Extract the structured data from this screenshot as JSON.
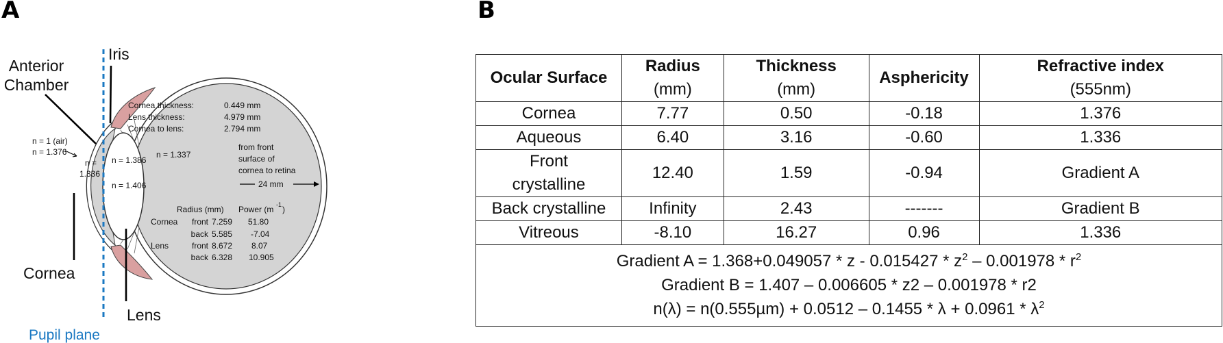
{
  "panels": {
    "a": "A",
    "b": "B"
  },
  "diagram": {
    "labels": {
      "anterior_chamber_1": "Anterior",
      "anterior_chamber_2": "Chamber",
      "iris": "Iris",
      "cornea": "Cornea",
      "lens": "Lens",
      "pupil_plane": "Pupil plane",
      "n_air": "n = 1 (air)",
      "n_cornea": "n = 1.376",
      "n_aqueous_1": "n =",
      "n_aqueous_2": "1.336",
      "n_lens_outer": "n = 1.386",
      "n_lens_core": "n = 1.406",
      "n_vitreous": "n = 1.337"
    },
    "measurements": [
      {
        "label": "Cornea thickness:",
        "value": "0.449 mm"
      },
      {
        "label": "Lens  thickness:",
        "value": "4.979 mm"
      },
      {
        "label": "Cornea to lens:",
        "value": "2.794 mm"
      }
    ],
    "axial_length": {
      "line1": "from front",
      "line2": "surface of",
      "line3": "cornea to retina",
      "value": "24 mm"
    },
    "surface_table": {
      "col_radius": "Radius (mm)",
      "col_power": "Power (m",
      "col_power_exp": "-1",
      "col_power_close": ")",
      "rows": [
        {
          "group": "Cornea",
          "name": "front",
          "radius": "7.259",
          "power": "51.80"
        },
        {
          "group": "",
          "name": "back",
          "radius": "5.585",
          "power": "-7.04"
        },
        {
          "group": "Lens",
          "name": "front",
          "radius": "8.672",
          "power": "8.07"
        },
        {
          "group": "",
          "name": "back",
          "radius": "6.328",
          "power": "10.905"
        }
      ]
    },
    "colors": {
      "pupil_plane": "#1a78c2",
      "globe_fill": "#d4d4d4",
      "iris_fill": "#d9a0a0"
    }
  },
  "table": {
    "headers": [
      {
        "bold": "Ocular Surface",
        "sub": ""
      },
      {
        "bold": "Radius",
        "sub": "(mm)"
      },
      {
        "bold": "Thickness",
        "sub": "(mm)"
      },
      {
        "bold": "Asphericity",
        "sub": ""
      },
      {
        "bold": "Refractive index",
        "sub": "(555nm)"
      }
    ],
    "rows": [
      [
        "Cornea",
        "7.77",
        "0.50",
        "-0.18",
        "1.376"
      ],
      [
        "Aqueous",
        "6.40",
        "3.16",
        "-0.60",
        "1.336"
      ],
      [
        "Front crystalline",
        "12.40",
        "1.59",
        "-0.94",
        "Gradient A"
      ],
      [
        "Back crystalline",
        "Infinity",
        "2.43",
        "-------",
        "Gradient B"
      ],
      [
        "Vitreous",
        "-8.10",
        "16.27",
        "0.96",
        "1.336"
      ]
    ],
    "formulas": {
      "gradient_a_pre": "Gradient A = 1.368+0.049057 * z - 0.015427 * z",
      "gradient_a_exp1": "2",
      "gradient_a_mid": " – 0.001978 * r",
      "gradient_a_exp2": "2",
      "gradient_b": "Gradient B = 1.407 – 0.006605 * z2 – 0.001978 * r2",
      "dispersion_pre": "n(λ) = n(0.555µm) + 0.0512 – 0.1455 * λ + 0.0961 * λ",
      "dispersion_exp": "2"
    }
  }
}
